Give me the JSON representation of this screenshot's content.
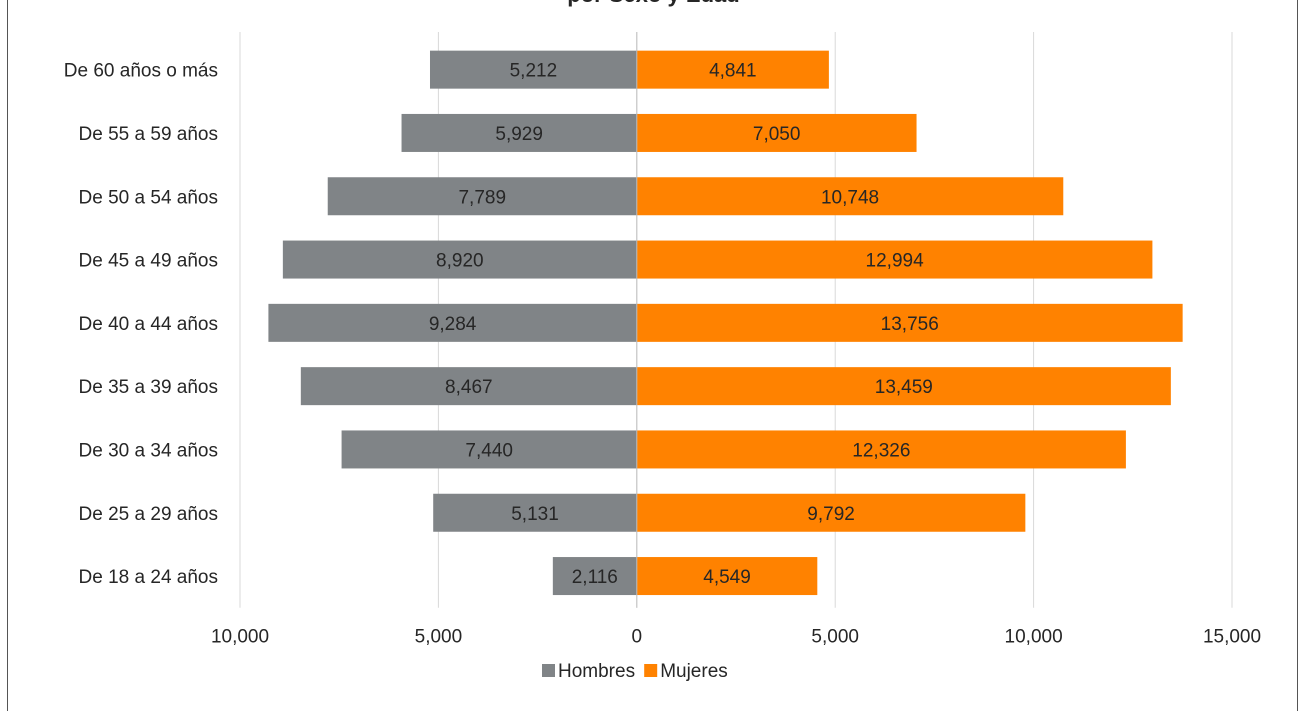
{
  "chart_data": {
    "type": "bar",
    "orientation": "horizontal",
    "layout": "population-pyramid",
    "title": "por Sexo y Edad",
    "categories": [
      "De 18 a 24 años",
      "De 25 a 29 años",
      "De 30 a 34 años",
      "De 35 a 39 años",
      "De 40 a 44 años",
      "De 45 a 49 años",
      "De 50 a 54 años",
      "De 55 a 59 años",
      "De 60 años o más"
    ],
    "series": [
      {
        "name": "Hombres",
        "color": "#808487",
        "direction": "left",
        "values": [
          2116,
          5131,
          7440,
          8467,
          9284,
          8920,
          7789,
          5929,
          5212
        ],
        "labels": [
          "2,116",
          "5,131",
          "7,440",
          "8,467",
          "9,284",
          "8,920",
          "7,789",
          "5,929",
          "5,212"
        ]
      },
      {
        "name": "Mujeres",
        "color": "#FF8200",
        "direction": "right",
        "values": [
          4549,
          9792,
          12326,
          13459,
          13756,
          12994,
          10748,
          7050,
          4841
        ],
        "labels": [
          "4,549",
          "9,792",
          "12,326",
          "13,459",
          "13,756",
          "12,994",
          "10,748",
          "7,050",
          "4,841"
        ]
      }
    ],
    "xlim": [
      -10000,
      15000
    ],
    "xticks": [
      -10000,
      -5000,
      0,
      5000,
      10000,
      15000
    ],
    "xtick_labels": [
      "10,000",
      "5,000",
      "0",
      "5,000",
      "10,000",
      "15,000"
    ],
    "grid": "vertical",
    "legend_position": "bottom"
  }
}
